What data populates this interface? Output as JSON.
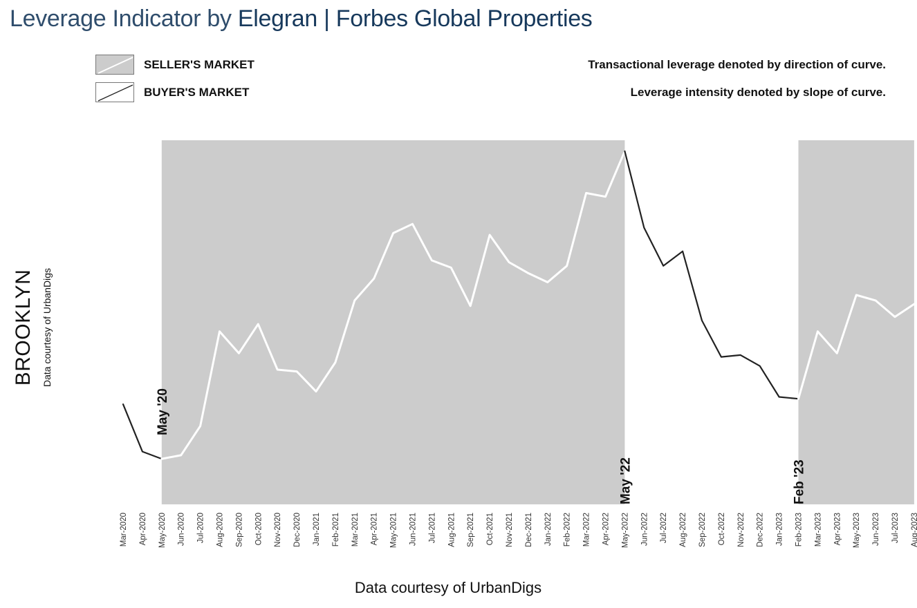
{
  "header": {
    "title_prefix": "Leverage Indicator by ",
    "title_brand": "Elegran | Forbes Global Properties"
  },
  "legend": {
    "items": [
      {
        "label": "SELLER'S MARKET",
        "fill": "#cccccc",
        "line": "#ffffff"
      },
      {
        "label": "BUYER'S MARKET",
        "fill": "#ffffff",
        "line": "#222222"
      }
    ]
  },
  "notes": {
    "direction": "Transactional leverage denoted by direction of curve.",
    "slope": "Leverage intensity denoted by slope of curve."
  },
  "side": {
    "title": "BROOKLYN",
    "subtitle": "Data courtesy of UrbanDigs"
  },
  "footer": {
    "source": "Data courtesy of UrbanDigs"
  },
  "colors": {
    "seller_fill": "#cccccc",
    "seller_line": "#ffffff",
    "buyer_line": "#222222",
    "title_color": "#17395c"
  },
  "chart_data": {
    "type": "line",
    "title": "Leverage Indicator by Elegran | Forbes Global Properties",
    "xlabel": "",
    "ylabel": "",
    "yaxis_labeled": false,
    "ylim": [
      0,
      100
    ],
    "grid": false,
    "x": [
      "Mar-2020",
      "Apr-2020",
      "May-2020",
      "Jun-2020",
      "Jul-2020",
      "Aug-2020",
      "Sep-2020",
      "Oct-2020",
      "Nov-2020",
      "Dec-2020",
      "Jan-2021",
      "Feb-2021",
      "Mar-2021",
      "Apr-2021",
      "May-2021",
      "Jun-2021",
      "Jul-2021",
      "Aug-2021",
      "Sep-2021",
      "Oct-2021",
      "Nov-2021",
      "Dec-2021",
      "Jan-2022",
      "Feb-2022",
      "Mar-2022",
      "Apr-2022",
      "May-2022",
      "Jun-2022",
      "Jul-2022",
      "Aug-2022",
      "Sep-2022",
      "Oct-2022",
      "Nov-2022",
      "Dec-2022",
      "Jan-2023",
      "Feb-2023",
      "Mar-2023",
      "Apr-2023",
      "May-2023",
      "Jun-2023",
      "Jul-2023",
      "Aug-2023"
    ],
    "values": [
      27.5,
      14.5,
      12.5,
      13.5,
      21.5,
      47.5,
      41.5,
      49.5,
      37.0,
      36.5,
      31.0,
      39.0,
      56.0,
      62.0,
      74.5,
      77.0,
      67.0,
      65.0,
      54.5,
      74.0,
      66.5,
      63.5,
      61.0,
      65.5,
      85.5,
      84.5,
      97.0,
      76.0,
      65.5,
      69.5,
      50.5,
      40.5,
      41.0,
      38.0,
      29.5,
      29.0,
      47.5,
      41.5,
      57.5,
      56.0,
      51.5,
      55.0
    ],
    "regimes": [
      {
        "name": "BUYER'S MARKET",
        "start": "Mar-2020",
        "end": "May-2020"
      },
      {
        "name": "SELLER'S MARKET",
        "start": "May-2020",
        "end": "May-2022"
      },
      {
        "name": "BUYER'S MARKET",
        "start": "May-2022",
        "end": "Feb-2023"
      },
      {
        "name": "SELLER'S MARKET",
        "start": "Feb-2023",
        "end": "Aug-2023"
      }
    ],
    "annotations": [
      {
        "text": "May '20",
        "x": "May-2020",
        "position": "top-left-of-shade"
      },
      {
        "text": "May '22",
        "x": "May-2022",
        "position": "bottom"
      },
      {
        "text": "Feb '23",
        "x": "Feb-2023",
        "position": "bottom"
      }
    ]
  }
}
